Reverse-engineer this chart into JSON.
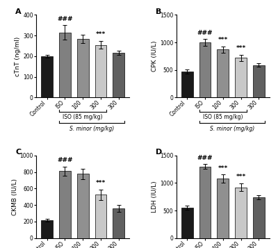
{
  "panels": [
    {
      "label": "A",
      "ylabel": "cTnT (ng/ml)",
      "ylim": [
        0,
        400
      ],
      "yticks": [
        0,
        100,
        200,
        300,
        400
      ],
      "values": [
        200,
        315,
        285,
        255,
        218
      ],
      "errors": [
        8,
        35,
        20,
        18,
        10
      ],
      "sig_above": [
        "",
        "###",
        "",
        "***",
        ""
      ],
      "colors": [
        "#1a1a1a",
        "#808080",
        "#909090",
        "#c8c8c8",
        "#606060"
      ]
    },
    {
      "label": "B",
      "ylabel": "CPK (IU/L)",
      "ylim": [
        0,
        1500
      ],
      "yticks": [
        0,
        500,
        1000,
        1500
      ],
      "values": [
        470,
        1000,
        870,
        720,
        590
      ],
      "errors": [
        40,
        60,
        60,
        55,
        30
      ],
      "sig_above": [
        "",
        "###",
        "***",
        "***",
        ""
      ],
      "colors": [
        "#1a1a1a",
        "#808080",
        "#909090",
        "#c8c8c8",
        "#606060"
      ]
    },
    {
      "label": "C",
      "ylabel": "CKMB (IU/L)",
      "ylim": [
        0,
        1000
      ],
      "yticks": [
        0,
        200,
        400,
        600,
        800,
        1000
      ],
      "values": [
        215,
        810,
        775,
        525,
        360
      ],
      "errors": [
        18,
        55,
        65,
        65,
        40
      ],
      "sig_above": [
        "",
        "###",
        "",
        "***",
        ""
      ],
      "colors": [
        "#1a1a1a",
        "#808080",
        "#909090",
        "#c8c8c8",
        "#606060"
      ]
    },
    {
      "label": "D",
      "ylabel": "LDH (IU/L)",
      "ylim": [
        0,
        1500
      ],
      "yticks": [
        0,
        500,
        1000,
        1500
      ],
      "values": [
        550,
        1300,
        1080,
        920,
        740
      ],
      "errors": [
        35,
        40,
        70,
        70,
        40
      ],
      "sig_above": [
        "",
        "###",
        "***",
        "***",
        ""
      ],
      "colors": [
        "#1a1a1a",
        "#808080",
        "#909090",
        "#c8c8c8",
        "#606060"
      ]
    }
  ],
  "xticklabels": [
    "Control",
    "ISO",
    "100",
    "300",
    "300"
  ],
  "iso_label": "ISO (85 mg/kg)",
  "sminor_label": "S. minor (mg/kg)",
  "bar_width": 0.65,
  "background_color": "#ffffff",
  "fontsize_ylabel": 6.5,
  "fontsize_tick": 5.5,
  "fontsize_panel": 8,
  "fontsize_sig": 6.5,
  "fontsize_bracket": 5.5
}
